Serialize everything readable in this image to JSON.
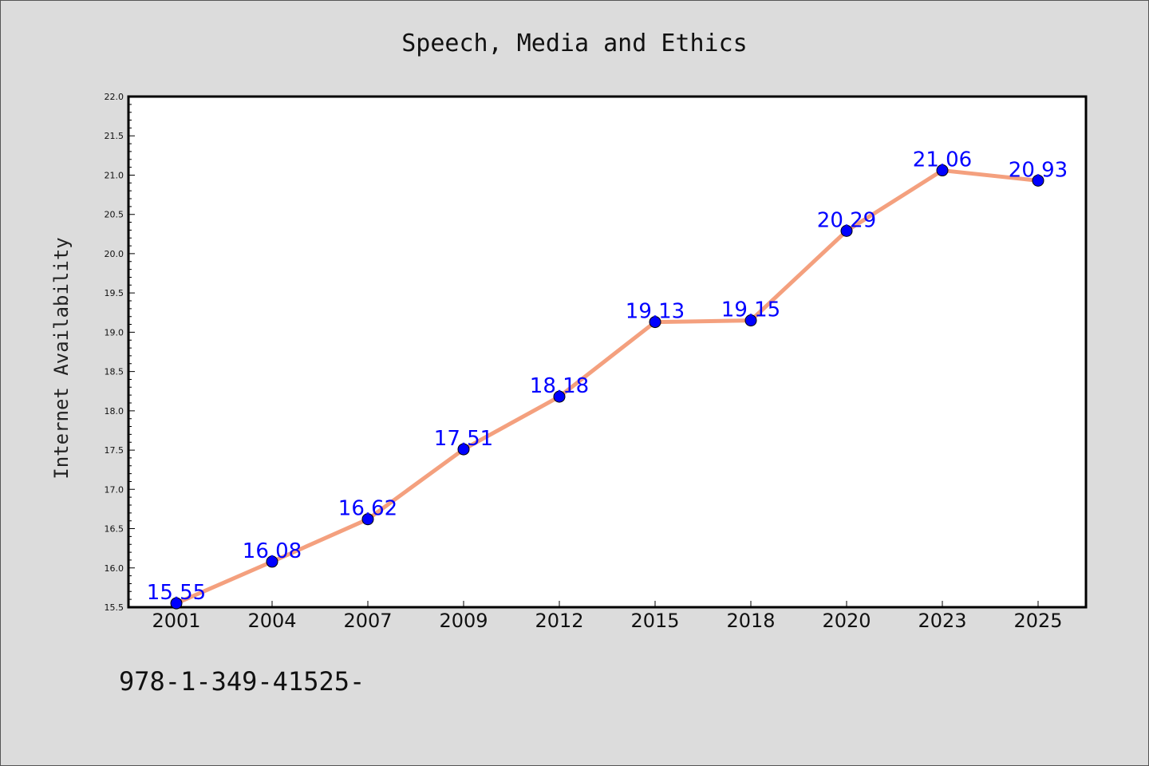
{
  "chart_data": {
    "type": "line",
    "title": "Speech, Media and Ethics",
    "xlabel": "",
    "ylabel": "Internet Availability",
    "categories": [
      "2001",
      "2004",
      "2007",
      "2009",
      "2012",
      "2015",
      "2018",
      "2020",
      "2023",
      "2025"
    ],
    "series": [
      {
        "values": [
          15.55,
          16.08,
          16.62,
          17.51,
          18.18,
          19.13,
          19.15,
          20.29,
          21.06,
          20.93
        ]
      }
    ],
    "data_labels": [
      "15.55",
      "16.08",
      "16.62",
      "17.51",
      "18.18",
      "19.13",
      "19.15",
      "20.29",
      "21.06",
      "20.93"
    ],
    "ylim": [
      15.5,
      22.0
    ],
    "yticks": [
      "15.5",
      "16.0",
      "16.5",
      "17.0",
      "17.5",
      "18.0",
      "18.5",
      "19.0",
      "19.5",
      "20.0",
      "20.5",
      "21.0",
      "21.5",
      "22.0"
    ],
    "grid": false,
    "legend": "none",
    "colors": {
      "line": "#f4a07e",
      "marker": "#0000ff",
      "data_label": "#0000ff",
      "background": "#dcdcdc",
      "plot_background": "#ffffff"
    }
  },
  "footer": {
    "text": "978-1-349-41525-"
  }
}
